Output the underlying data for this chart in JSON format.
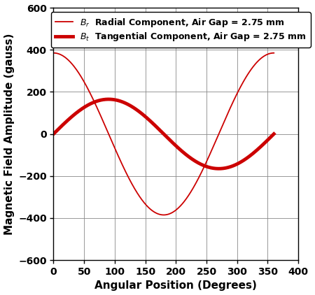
{
  "title": "",
  "xlabel": "Angular Position (Degrees)",
  "ylabel": "Magnetic Field Amplitude (gauss)",
  "xlim": [
    0,
    400
  ],
  "ylim": [
    -600,
    600
  ],
  "xticks": [
    0,
    50,
    100,
    150,
    200,
    250,
    300,
    350,
    400
  ],
  "yticks": [
    -600,
    -400,
    -200,
    0,
    200,
    400,
    600
  ],
  "radial_color": "#CC0000",
  "tangential_color": "#CC0000",
  "radial_linewidth": 1.3,
  "tangential_linewidth": 3.5,
  "radial_amplitude": 385,
  "tangential_amplitude": 165,
  "legend_radial": "Bᵣ  Radial Component, Air Gap = 2.75 mm",
  "legend_tangential": "Bₜ  Tangential Component, Air Gap = 2.75 mm",
  "background_color": "#ffffff",
  "grid_color": "#888888"
}
